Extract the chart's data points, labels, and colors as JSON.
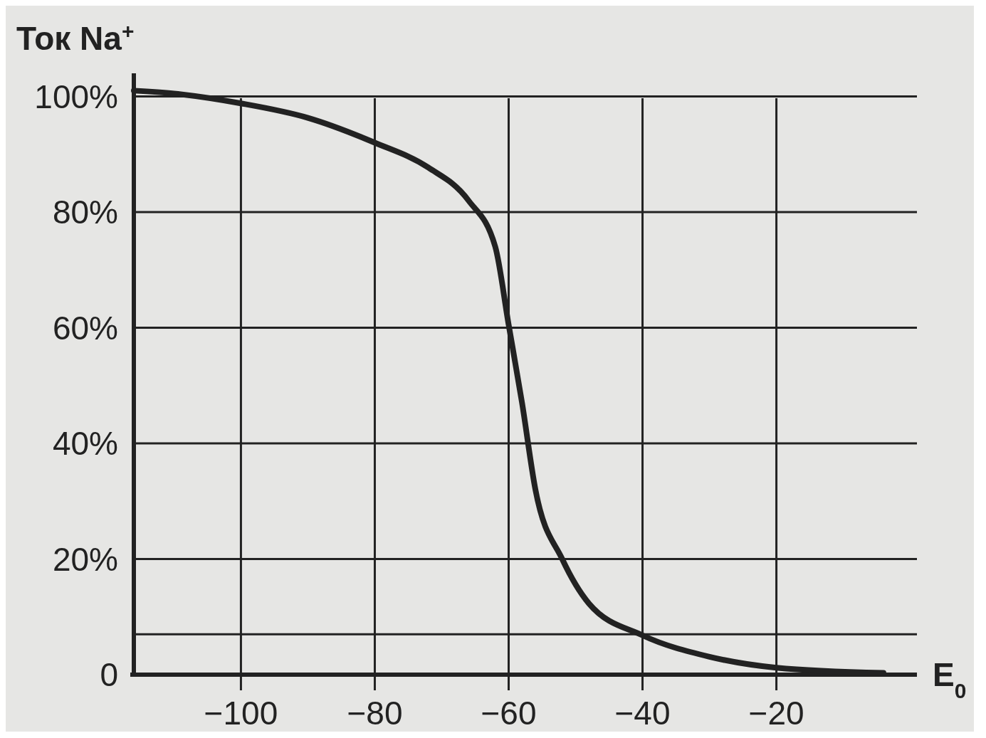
{
  "chart_data": {
    "type": "line",
    "ylabel": "Ток Na$^{+}$",
    "xlabel": "E$_{0}$",
    "x": [
      -116,
      -110,
      -100,
      -90,
      -80,
      -72,
      -66,
      -62,
      -60,
      -58,
      -56,
      -52,
      -48,
      -40,
      -30,
      -20,
      -4
    ],
    "series": [
      {
        "color": "#222222",
        "values": [
          101,
          100.5,
          98.8,
          96.3,
          92,
          87.7,
          82,
          74,
          60.5,
          47,
          32,
          20,
          12.3,
          6.8,
          3.1,
          1.2,
          0.3
        ]
      }
    ],
    "xlim": [
      -116,
      1
    ],
    "ylim": [
      0,
      104
    ],
    "xticks": [
      {
        "value": -100,
        "label": "−100"
      },
      {
        "value": -80,
        "label": "−80"
      },
      {
        "value": -60,
        "label": "−60"
      },
      {
        "value": -40,
        "label": "−40"
      },
      {
        "value": -20,
        "label": "−20"
      }
    ],
    "yticks": [
      {
        "value": 0,
        "label": "0"
      },
      {
        "value": 7,
        "label": null
      },
      {
        "value": 20,
        "label": "20%"
      },
      {
        "value": 40,
        "label": "40%"
      },
      {
        "value": 60,
        "label": "60%"
      },
      {
        "value": 80,
        "label": "80%"
      },
      {
        "value": 100,
        "label": "100%"
      }
    ],
    "grid": true,
    "marker": "none",
    "line_style": "solid"
  }
}
